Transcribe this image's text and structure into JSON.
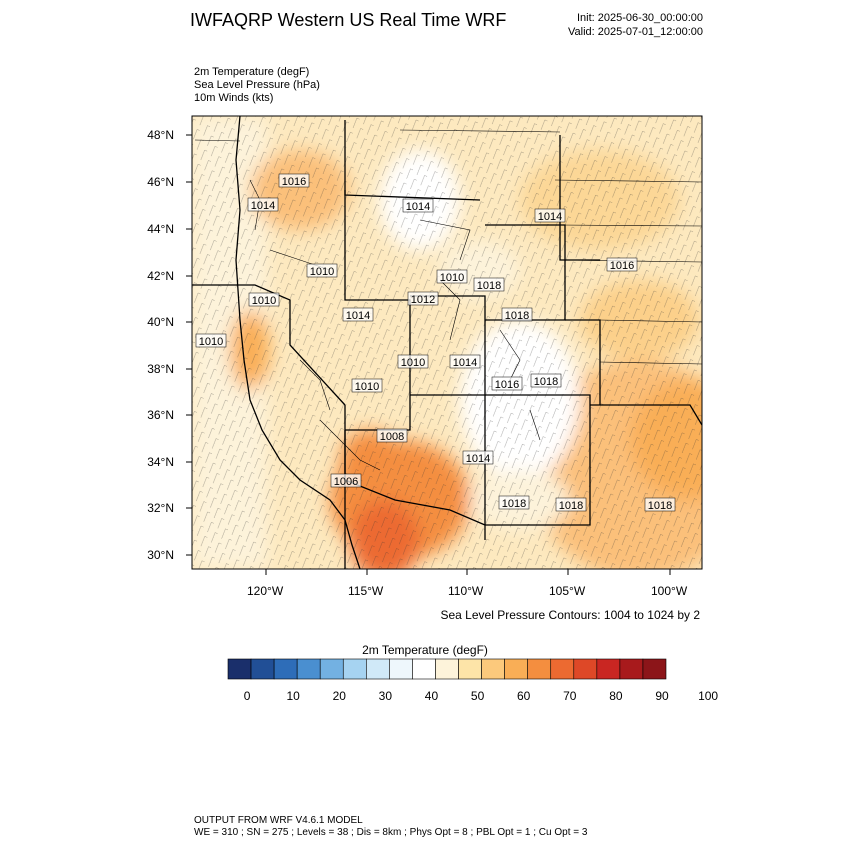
{
  "header": {
    "title": "IWFAQRP Western US Real Time WRF",
    "init": "Init: 2025-06-30_00:00:00",
    "valid": "Valid: 2025-07-01_12:00:00"
  },
  "variables": [
    "2m Temperature   (degF)",
    "Sea Level Pressure   (hPa)",
    "10m Winds   (kts)"
  ],
  "map": {
    "lat_labels": [
      "48°N",
      "46°N",
      "44°N",
      "42°N",
      "40°N",
      "38°N",
      "36°N",
      "34°N",
      "32°N",
      "30°N"
    ],
    "lon_labels": [
      "120°W",
      "115°W",
      "110°W",
      "105°W",
      "100°W"
    ],
    "pressure_labels": [
      {
        "text": "1016",
        "region": "northern Idaho"
      },
      {
        "text": "1014",
        "region": "eastern Washington"
      },
      {
        "text": "1014",
        "region": "western Montana"
      },
      {
        "text": "1014",
        "region": "eastern Montana"
      },
      {
        "text": "1010",
        "region": "southern Idaho"
      },
      {
        "text": "1016",
        "region": "eastern Nebraska"
      },
      {
        "text": "1010",
        "region": "southwestern Idaho"
      },
      {
        "text": "1012",
        "region": "eastern Idaho"
      },
      {
        "text": "1018",
        "region": "Wyoming"
      },
      {
        "text": "1010",
        "region": "northern Nevada"
      },
      {
        "text": "1014",
        "region": "northern Utah"
      },
      {
        "text": "1018",
        "region": "northern Colorado"
      },
      {
        "text": "1010",
        "region": "Pacific coast"
      },
      {
        "text": "1010",
        "region": "central Nevada"
      },
      {
        "text": "1014",
        "region": "central Utah"
      },
      {
        "text": "1010",
        "region": "southern Nevada"
      },
      {
        "text": "1016",
        "region": "southern Colorado"
      },
      {
        "text": "1018",
        "region": "southern Colorado"
      },
      {
        "text": "1014",
        "region": "New Mexico"
      },
      {
        "text": "1008",
        "region": "Lower Colorado River"
      },
      {
        "text": "1006",
        "region": "Baja California"
      },
      {
        "text": "1018",
        "region": "southern New Mexico"
      },
      {
        "text": "1018",
        "region": "West Texas"
      },
      {
        "text": "1018",
        "region": "central Texas"
      }
    ],
    "contour_note": "Sea Level Pressure Contours: 1004 to 1024 by 2"
  },
  "colorbar": {
    "title": "2m Temperature  (degF)",
    "labels": [
      "0",
      "10",
      "20",
      "30",
      "40",
      "50",
      "60",
      "70",
      "80",
      "90",
      "100"
    ],
    "colors": [
      "#1a2f6b",
      "#214f96",
      "#2e6db8",
      "#4a8fd0",
      "#73b1e2",
      "#a6d3f1",
      "#d0e9f8",
      "#eef7fc",
      "#ffffff",
      "#fdf3da",
      "#fde4a8",
      "#fcc97c",
      "#f9ae56",
      "#f48e3f",
      "#ec6a31",
      "#de4827",
      "#c92622",
      "#a81a1c",
      "#8c1519"
    ]
  },
  "footer": {
    "line1": "OUTPUT FROM WRF V4.6.1 MODEL",
    "line2": "WE = 310 ; SN = 275 ; Levels = 38 ; Dis = 8km ; Phys Opt = 8 ; PBL Opt = 1 ; Cu Opt = 3"
  }
}
